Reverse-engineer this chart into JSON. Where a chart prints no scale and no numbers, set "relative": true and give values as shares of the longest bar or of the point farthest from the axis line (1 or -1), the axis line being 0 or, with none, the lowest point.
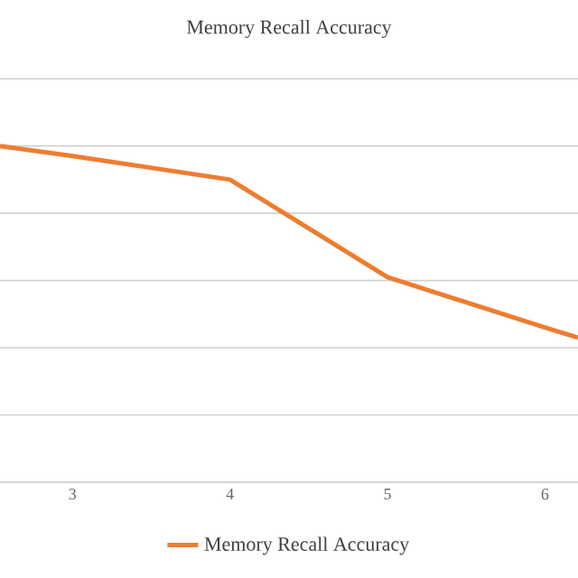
{
  "chart_data": {
    "type": "line",
    "title": "Memory Recall Accuracy",
    "x": [
      2.54,
      3,
      4,
      5,
      6,
      6.21
    ],
    "xlim": [
      2.54,
      6.21
    ],
    "xticks": [
      3,
      4,
      5,
      6
    ],
    "series": [
      {
        "name": "Memory Recall Accuracy",
        "color": "#ed7d31",
        "values": [
          1,
          0.97,
          0.9,
          0.61,
          0.46,
          0.43
        ]
      }
    ],
    "relative": true,
    "grid": "y",
    "legend": "bottom",
    "marker": "none",
    "line_style": "solid"
  }
}
